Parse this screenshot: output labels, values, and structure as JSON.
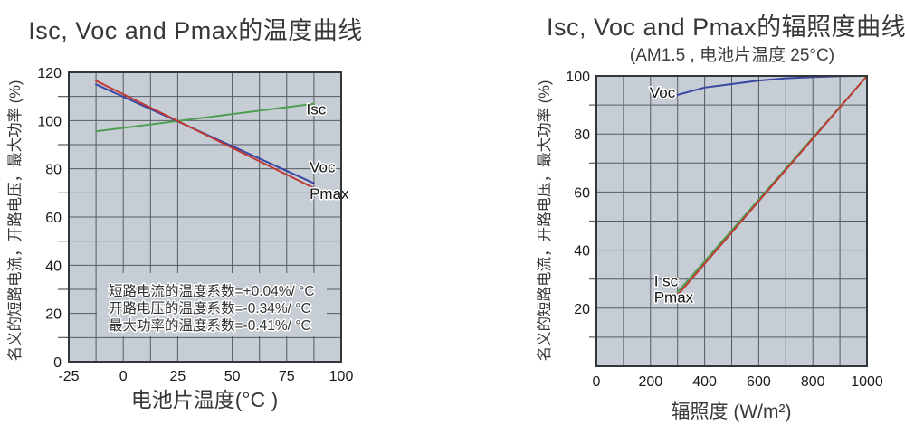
{
  "page": {
    "background": "#ffffff"
  },
  "style": {
    "plot_bg": "#c6cdd4",
    "grid": "#565b62",
    "frame": "#33363a",
    "tick_text": "#1a1a1a",
    "title_text": "#383838",
    "curve_label_text": "#141414",
    "annotation_text": "#333333"
  },
  "chart_data": [
    {
      "type": "line",
      "title": "Isc, Voc and Pmax的温度曲线",
      "xlabel": "电池片温度(°C )",
      "ylabel": "名义的短路电流，开路电压，最大功率 (%)",
      "xlim": [
        -25,
        100
      ],
      "ylim": [
        0,
        120
      ],
      "x_ticks": [
        "-25",
        "0",
        "25",
        "50",
        "75",
        "100"
      ],
      "x_tick_values": [
        -25,
        0,
        25,
        50,
        75,
        100
      ],
      "y_ticks": [
        "0",
        "20",
        "40",
        "60",
        "80",
        "100",
        "120"
      ],
      "y_tick_values": [
        0,
        20,
        40,
        60,
        80,
        100,
        120
      ],
      "grid_step_x": 12.5,
      "grid_step_y": 10,
      "grid": true,
      "legend_position": "inline-labels",
      "series": [
        {
          "name": "Isc",
          "color": "#4f9e53",
          "x": [
            -12.5,
            87.5
          ],
          "y": [
            95.5,
            107
          ],
          "label": "Isc",
          "label_at": [
            84,
            102.5
          ]
        },
        {
          "name": "Voc",
          "color": "#3a47a0",
          "x": [
            -12.5,
            87.5
          ],
          "y": [
            115,
            74
          ],
          "label": "Voc",
          "label_at": [
            85.5,
            78.5
          ]
        },
        {
          "name": "Pmax",
          "color": "#bf3a35",
          "x": [
            -12.5,
            87.5
          ],
          "y": [
            116.5,
            72
          ],
          "label": "Pmax",
          "label_at": [
            85.5,
            67.5
          ]
        }
      ],
      "annotations": [
        "短路电流的温度系数=+0.04%/ °C",
        "开路电压的温度系数=-0.34%/ °C",
        "最大功率的温度系数=-0.41%/ °C"
      ]
    },
    {
      "type": "line",
      "title": "Isc, Voc and Pmax的辐照度曲线",
      "subtitle": "(AM1.5 , 电池片温度 25°C)",
      "xlabel": "辐照度 (W/m²)",
      "ylabel": "名义的短路电流，开路电压，最大功率 (%)",
      "xlim": [
        0,
        1000
      ],
      "ylim": [
        0,
        100
      ],
      "x_ticks": [
        "0",
        "200",
        "400",
        "600",
        "800",
        "1000"
      ],
      "x_tick_values": [
        0,
        200,
        400,
        600,
        800,
        1000
      ],
      "y_ticks": [
        "20",
        "40",
        "60",
        "80",
        "100"
      ],
      "y_tick_values": [
        20,
        40,
        60,
        80,
        100
      ],
      "grid_step_x": 100,
      "grid_step_y": 10,
      "grid": true,
      "legend_position": "inline-labels",
      "series": [
        {
          "name": "Voc",
          "color": "#3a47a0",
          "x": [
            300,
            400,
            500,
            600,
            700,
            800,
            900,
            1000
          ],
          "y": [
            93.5,
            96,
            97.2,
            98.4,
            99.2,
            99.6,
            99.9,
            100
          ],
          "label": "Voc",
          "label_at": [
            197,
            92.5
          ]
        },
        {
          "name": "Isc",
          "color": "#4f9e53",
          "x": [
            300,
            1000
          ],
          "y": [
            25.5,
            100
          ],
          "label": "I sc",
          "label_at": [
            213,
            27.5
          ]
        },
        {
          "name": "Pmax",
          "color": "#bf3a35",
          "x": [
            300,
            1000
          ],
          "y": [
            24.5,
            100
          ],
          "label": "Pmax",
          "label_at": [
            213,
            22
          ]
        }
      ]
    }
  ]
}
